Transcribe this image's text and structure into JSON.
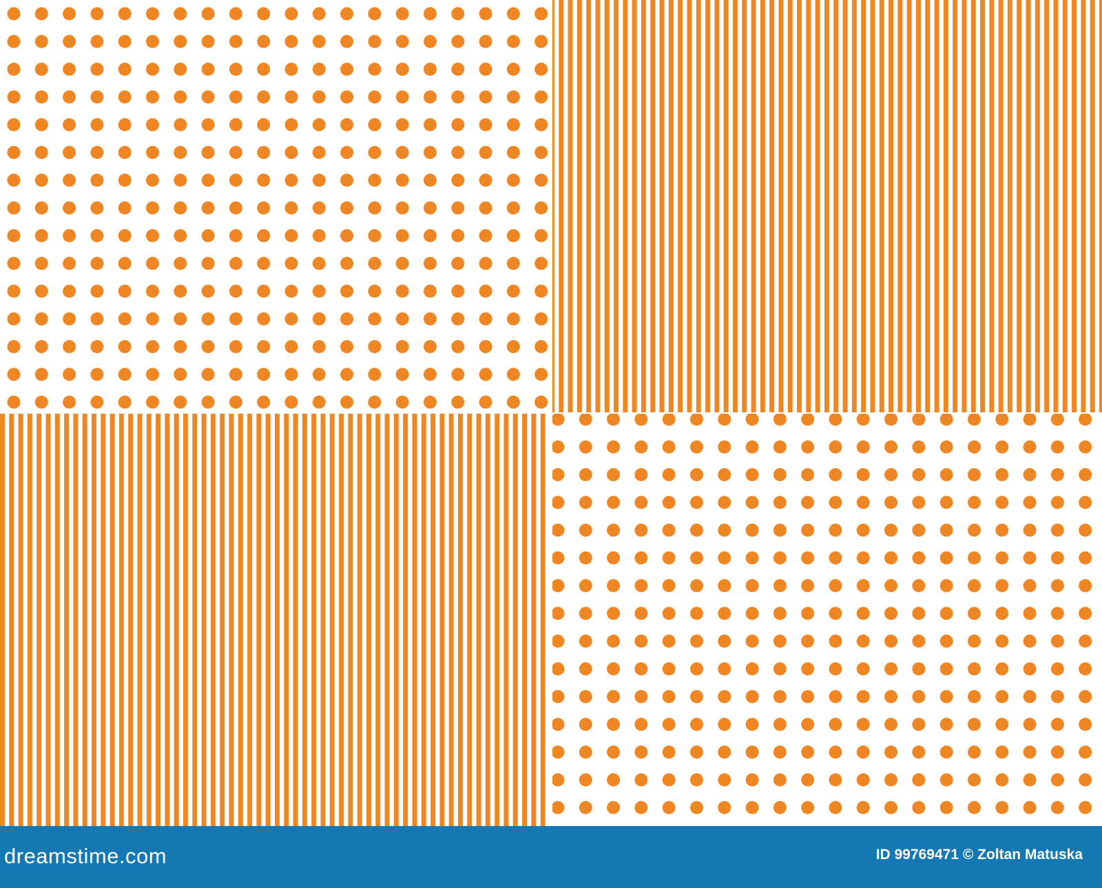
{
  "footer": {
    "logo": "dreamstime.com",
    "credit": "ID 99769471 © Zoltan Matuska"
  }
}
